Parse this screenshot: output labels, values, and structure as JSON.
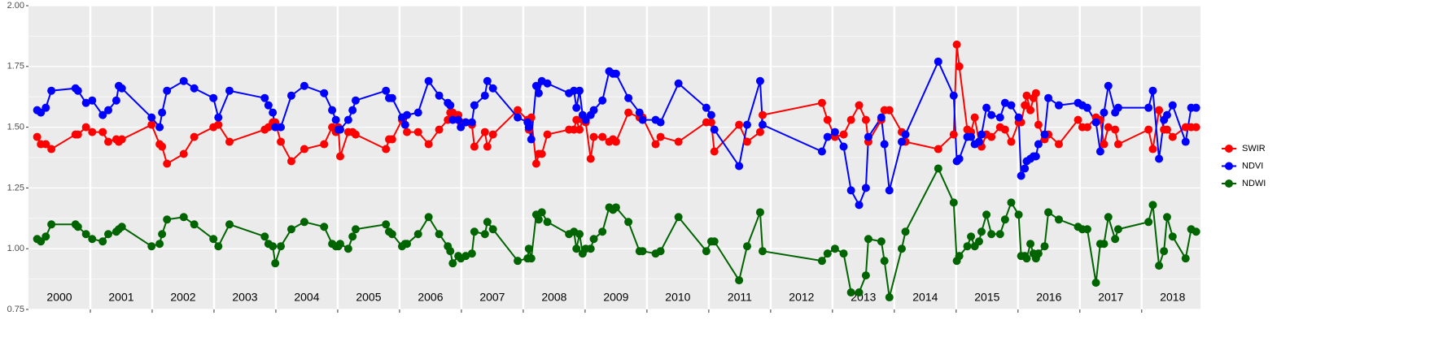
{
  "chart_data": {
    "type": "line",
    "x": [
      2000.14,
      2000.2,
      2000.28,
      2000.37,
      2000.76,
      2000.8,
      2000.93,
      2001.03,
      2001.2,
      2001.29,
      2001.42,
      2001.46,
      2001.51,
      2001.99,
      2002.12,
      2002.16,
      2002.24,
      2002.51,
      2002.68,
      2002.99,
      2003.07,
      2003.25,
      2003.82,
      2003.88,
      2003.95,
      2003.99,
      2004.08,
      2004.25,
      2004.46,
      2004.78,
      2004.91,
      2004.97,
      2005.01,
      2005.04,
      2005.17,
      2005.24,
      2005.29,
      2005.78,
      2005.83,
      2005.88,
      2006.04,
      2006.09,
      2006.12,
      2006.3,
      2006.47,
      2006.64,
      2006.78,
      2006.82,
      2006.86,
      2006.95,
      2006.99,
      2007.07,
      2007.17,
      2007.21,
      2007.38,
      2007.42,
      2007.51,
      2007.91,
      2008.07,
      2008.09,
      2008.13,
      2008.21,
      2008.25,
      2008.3,
      2008.39,
      2008.74,
      2008.82,
      2008.86,
      2008.91,
      2008.96,
      2009.01,
      2009.09,
      2009.14,
      2009.28,
      2009.39,
      2009.45,
      2009.5,
      2009.7,
      2009.88,
      2009.93,
      2010.14,
      2010.22,
      2010.51,
      2010.96,
      2011.04,
      2011.09,
      2011.49,
      2011.62,
      2011.83,
      2011.87,
      2012.83,
      2012.92,
      2013.04,
      2013.18,
      2013.3,
      2013.43,
      2013.54,
      2013.58,
      2013.79,
      2013.84,
      2013.92,
      2014.12,
      2014.18,
      2014.71,
      2014.96,
      2015.01,
      2015.05,
      2015.18,
      2015.24,
      2015.3,
      2015.37,
      2015.41,
      2015.49,
      2015.57,
      2015.71,
      2015.79,
      2015.89,
      2016.01,
      2016.05,
      2016.11,
      2016.14,
      2016.2,
      2016.25,
      2016.29,
      2016.33,
      2016.43,
      2016.49,
      2016.66,
      2016.97,
      2017.04,
      2017.12,
      2017.26,
      2017.33,
      2017.39,
      2017.46,
      2017.57,
      2017.62,
      2018.11,
      2018.18,
      2018.28,
      2018.36,
      2018.41,
      2018.5,
      2018.71,
      2018.8,
      2018.88
    ],
    "series": [
      {
        "name": "SWIR",
        "color": "#ff0000",
        "values": [
          1.46,
          1.43,
          1.43,
          1.41,
          1.47,
          1.47,
          1.5,
          1.48,
          1.48,
          1.44,
          1.45,
          1.44,
          1.45,
          1.51,
          1.43,
          1.42,
          1.35,
          1.39,
          1.46,
          1.5,
          1.51,
          1.44,
          1.49,
          1.5,
          1.52,
          1.52,
          1.44,
          1.36,
          1.41,
          1.43,
          1.5,
          1.48,
          1.5,
          1.38,
          1.48,
          1.48,
          1.47,
          1.41,
          1.45,
          1.45,
          1.53,
          1.51,
          1.48,
          1.48,
          1.43,
          1.49,
          1.53,
          1.56,
          1.56,
          1.55,
          1.52,
          1.52,
          1.51,
          1.42,
          1.48,
          1.42,
          1.47,
          1.57,
          1.53,
          1.49,
          1.54,
          1.35,
          1.39,
          1.39,
          1.47,
          1.49,
          1.49,
          1.53,
          1.49,
          1.53,
          1.52,
          1.37,
          1.46,
          1.46,
          1.44,
          1.45,
          1.44,
          1.56,
          1.54,
          1.54,
          1.43,
          1.46,
          1.44,
          1.52,
          1.52,
          1.4,
          1.51,
          1.44,
          1.48,
          1.55,
          1.6,
          1.53,
          1.46,
          1.47,
          1.53,
          1.59,
          1.53,
          1.44,
          1.53,
          1.57,
          1.57,
          1.48,
          1.44,
          1.41,
          1.47,
          1.84,
          1.75,
          1.49,
          1.48,
          1.54,
          1.44,
          1.42,
          1.47,
          1.46,
          1.5,
          1.49,
          1.44,
          1.52,
          1.52,
          1.59,
          1.63,
          1.57,
          1.62,
          1.64,
          1.51,
          1.45,
          1.47,
          1.43,
          1.53,
          1.5,
          1.5,
          1.54,
          1.53,
          1.43,
          1.5,
          1.49,
          1.43,
          1.49,
          1.41,
          1.57,
          1.49,
          1.49,
          1.46,
          1.5,
          1.5,
          1.5
        ]
      },
      {
        "name": "NDVI",
        "color": "#0000ff",
        "values": [
          1.57,
          1.56,
          1.58,
          1.65,
          1.66,
          1.65,
          1.6,
          1.61,
          1.55,
          1.57,
          1.61,
          1.67,
          1.66,
          1.54,
          1.5,
          1.56,
          1.65,
          1.69,
          1.66,
          1.62,
          1.54,
          1.65,
          1.62,
          1.59,
          1.56,
          1.5,
          1.5,
          1.63,
          1.67,
          1.64,
          1.57,
          1.53,
          1.49,
          1.49,
          1.53,
          1.57,
          1.61,
          1.65,
          1.62,
          1.62,
          1.54,
          1.51,
          1.55,
          1.56,
          1.69,
          1.63,
          1.6,
          1.59,
          1.53,
          1.53,
          1.5,
          1.52,
          1.52,
          1.59,
          1.63,
          1.69,
          1.66,
          1.54,
          1.52,
          1.5,
          1.45,
          1.67,
          1.64,
          1.69,
          1.68,
          1.64,
          1.65,
          1.58,
          1.65,
          1.55,
          1.53,
          1.55,
          1.57,
          1.61,
          1.73,
          1.72,
          1.72,
          1.62,
          1.56,
          1.53,
          1.53,
          1.52,
          1.68,
          1.58,
          1.55,
          1.49,
          1.34,
          1.51,
          1.69,
          1.51,
          1.4,
          1.46,
          1.48,
          1.42,
          1.24,
          1.18,
          1.25,
          1.46,
          1.54,
          1.43,
          1.24,
          1.44,
          1.47,
          1.77,
          1.63,
          1.36,
          1.37,
          1.46,
          1.46,
          1.43,
          1.44,
          1.47,
          1.58,
          1.55,
          1.54,
          1.6,
          1.59,
          1.54,
          1.3,
          1.33,
          1.36,
          1.37,
          1.38,
          1.38,
          1.43,
          1.47,
          1.62,
          1.59,
          1.6,
          1.59,
          1.58,
          1.52,
          1.4,
          1.56,
          1.67,
          1.56,
          1.58,
          1.58,
          1.65,
          1.37,
          1.53,
          1.55,
          1.59,
          1.44,
          1.58,
          1.58
        ]
      },
      {
        "name": "NDWI",
        "color": "#006400",
        "values": [
          1.04,
          1.03,
          1.05,
          1.1,
          1.1,
          1.09,
          1.06,
          1.04,
          1.03,
          1.06,
          1.07,
          1.08,
          1.09,
          1.01,
          1.02,
          1.06,
          1.12,
          1.13,
          1.1,
          1.04,
          1.01,
          1.1,
          1.05,
          1.02,
          1.01,
          0.94,
          1.01,
          1.08,
          1.11,
          1.09,
          1.02,
          1.01,
          1.01,
          1.02,
          1.0,
          1.05,
          1.08,
          1.1,
          1.07,
          1.06,
          1.01,
          1.02,
          1.02,
          1.06,
          1.13,
          1.06,
          1.01,
          0.99,
          0.94,
          0.97,
          0.96,
          0.97,
          0.98,
          1.07,
          1.06,
          1.11,
          1.08,
          0.95,
          0.96,
          1.0,
          0.96,
          1.14,
          1.12,
          1.15,
          1.11,
          1.06,
          1.07,
          1.0,
          1.06,
          0.98,
          1.0,
          1.0,
          1.04,
          1.07,
          1.17,
          1.16,
          1.17,
          1.11,
          0.99,
          0.99,
          0.98,
          0.99,
          1.13,
          0.99,
          1.03,
          1.03,
          0.87,
          1.01,
          1.15,
          0.99,
          0.95,
          0.98,
          1.0,
          0.98,
          0.82,
          0.82,
          0.89,
          1.04,
          1.03,
          0.95,
          0.8,
          1.0,
          1.07,
          1.33,
          1.19,
          0.95,
          0.97,
          1.01,
          1.05,
          1.01,
          1.03,
          1.07,
          1.14,
          1.06,
          1.06,
          1.12,
          1.19,
          1.14,
          0.97,
          0.97,
          0.96,
          1.02,
          0.98,
          0.96,
          0.98,
          1.01,
          1.15,
          1.12,
          1.09,
          1.08,
          1.08,
          0.86,
          1.02,
          1.02,
          1.13,
          1.04,
          1.08,
          1.11,
          1.18,
          0.93,
          0.99,
          1.13,
          1.05,
          0.96,
          1.08,
          1.07
        ]
      }
    ],
    "xlim": [
      2000,
      2018.95
    ],
    "xticks": [
      2001,
      2002,
      2003,
      2004,
      2005,
      2006,
      2007,
      2008,
      2009,
      2010,
      2011,
      2012,
      2013,
      2014,
      2015,
      2016,
      2017,
      2018
    ],
    "year_labels": [
      {
        "value": 2000.5,
        "label": "2000"
      },
      {
        "value": 2001.5,
        "label": "2001"
      },
      {
        "value": 2002.5,
        "label": "2002"
      },
      {
        "value": 2003.5,
        "label": "2003"
      },
      {
        "value": 2004.5,
        "label": "2004"
      },
      {
        "value": 2005.5,
        "label": "2005"
      },
      {
        "value": 2006.5,
        "label": "2006"
      },
      {
        "value": 2007.5,
        "label": "2007"
      },
      {
        "value": 2008.5,
        "label": "2008"
      },
      {
        "value": 2009.5,
        "label": "2009"
      },
      {
        "value": 2010.5,
        "label": "2010"
      },
      {
        "value": 2011.5,
        "label": "2011"
      },
      {
        "value": 2012.5,
        "label": "2012"
      },
      {
        "value": 2013.5,
        "label": "2013"
      },
      {
        "value": 2014.5,
        "label": "2014"
      },
      {
        "value": 2015.5,
        "label": "2015"
      },
      {
        "value": 2016.5,
        "label": "2016"
      },
      {
        "value": 2017.5,
        "label": "2017"
      },
      {
        "value": 2018.5,
        "label": "2018"
      }
    ],
    "ylim": [
      0.75,
      2.0
    ],
    "yticks": [
      {
        "value": 0.75,
        "label": "0.75"
      },
      {
        "value": 1,
        "label": "1.00"
      },
      {
        "value": 1.25,
        "label": "1.25"
      },
      {
        "value": 1.5,
        "label": "1.50"
      },
      {
        "value": 1.75,
        "label": "1.75"
      },
      {
        "value": 2,
        "label": "2.00"
      }
    ],
    "grid": true,
    "legend": "right"
  }
}
